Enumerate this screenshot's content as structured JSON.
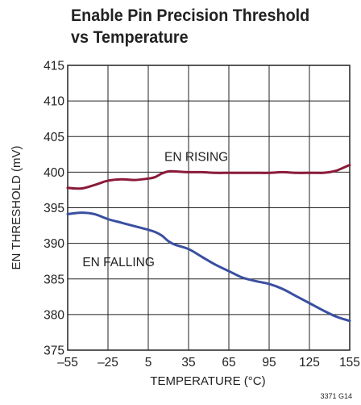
{
  "chart_data": {
    "type": "line",
    "title": "Enable Pin Precision Threshold",
    "subtitle": "vs Temperature",
    "xlabel": "TEMPERATURE (°C)",
    "ylabel": "EN THRESHOLD (mV)",
    "xlim": [
      -55,
      155
    ],
    "ylim": [
      375,
      415
    ],
    "xticks": [
      -55,
      -25,
      5,
      35,
      65,
      95,
      125,
      155
    ],
    "xtick_labels": [
      "–55",
      "–25",
      "5",
      "35",
      "65",
      "95",
      "125",
      "155"
    ],
    "yticks": [
      375,
      380,
      385,
      390,
      395,
      400,
      405,
      410,
      415
    ],
    "ytick_labels": [
      "375",
      "380",
      "385",
      "390",
      "395",
      "400",
      "405",
      "410",
      "415"
    ],
    "grid": true,
    "colors": {
      "rising": "#8b1a3a",
      "falling": "#3a4fa0"
    },
    "series": [
      {
        "name": "EN RISING",
        "x": [
          -55,
          -45,
          -35,
          -25,
          -15,
          -5,
          5,
          10,
          15,
          20,
          25,
          35,
          45,
          55,
          65,
          75,
          85,
          95,
          105,
          115,
          125,
          130,
          135,
          140,
          145,
          150,
          155
        ],
        "y": [
          397.8,
          397.7,
          398.2,
          398.8,
          399.0,
          398.9,
          399.1,
          399.3,
          399.8,
          400.1,
          400.1,
          400.0,
          400.0,
          399.9,
          399.9,
          399.9,
          399.9,
          399.9,
          400.0,
          399.9,
          399.9,
          399.9,
          399.9,
          400.0,
          400.2,
          400.6,
          401.0
        ]
      },
      {
        "name": "EN FALLING",
        "x": [
          -55,
          -45,
          -35,
          -25,
          -15,
          -5,
          5,
          10,
          15,
          20,
          25,
          35,
          45,
          55,
          65,
          75,
          85,
          95,
          105,
          115,
          125,
          135,
          145,
          155
        ],
        "y": [
          394.1,
          394.3,
          394.1,
          393.4,
          392.9,
          392.4,
          391.9,
          391.6,
          391.1,
          390.3,
          389.8,
          389.2,
          388.1,
          387.0,
          386.1,
          385.2,
          384.7,
          384.3,
          383.6,
          382.6,
          381.6,
          380.6,
          379.7,
          379.1
        ]
      }
    ],
    "annotations": [
      "EN RISING",
      "EN FALLING"
    ],
    "figure_id": "3371 G14"
  }
}
